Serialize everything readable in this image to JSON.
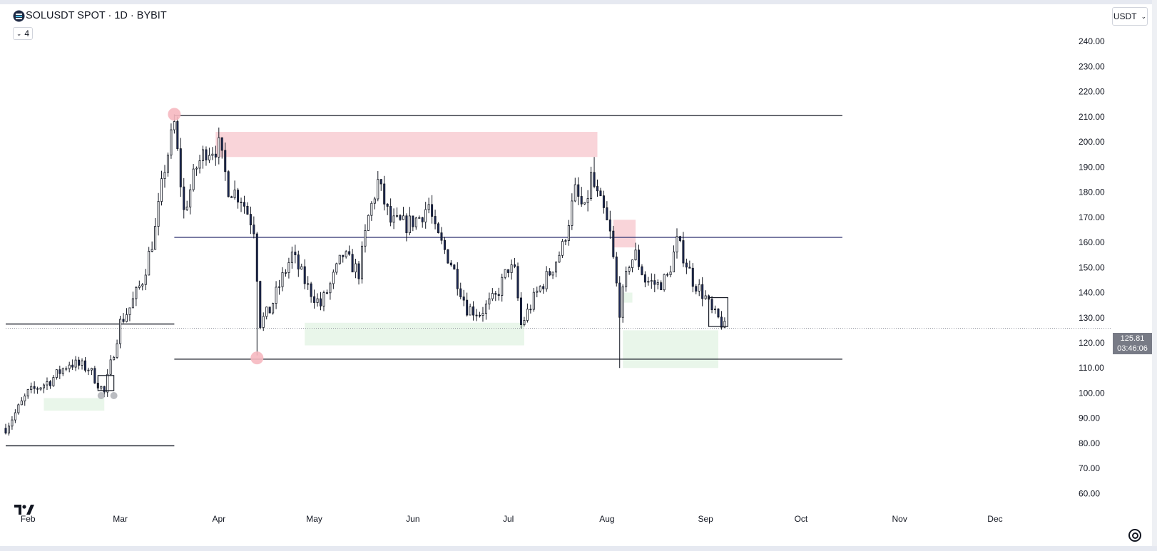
{
  "header": {
    "symbol_title": "SOLUSDT SPOT · 1D · BYBIT",
    "indicator_count": "4",
    "currency": "USDT"
  },
  "price_label": {
    "price": "125.81",
    "countdown": "03:46:06"
  },
  "colors": {
    "bull": "#ffffff",
    "bear": "#1e2b5a",
    "wick": "#131722",
    "supply_zone": "#f9d4d9",
    "demand_zone": "#e9f6ea",
    "level_line": "#131722",
    "mid_line": "#2a2e6e",
    "swing_marker": "#f6b8c0"
  },
  "chart_data": {
    "type": "candlestick",
    "title": "SOLUSDT SPOT · 1D · BYBIT",
    "xlabel": "",
    "ylabel": "",
    "ylim": [
      55,
      248
    ],
    "y_ticks": [
      60,
      70,
      80,
      90,
      100,
      110,
      120,
      130,
      140,
      150,
      160,
      170,
      180,
      190,
      200,
      210,
      220,
      230,
      240
    ],
    "x_start": "2024-01-25",
    "x_end": "2024-12-25",
    "x_ticks": [
      {
        "label": "Feb",
        "date": "2024-02-01"
      },
      {
        "label": "Mar",
        "date": "2024-03-01"
      },
      {
        "label": "Apr",
        "date": "2024-04-01"
      },
      {
        "label": "May",
        "date": "2024-05-01"
      },
      {
        "label": "Jun",
        "date": "2024-06-01"
      },
      {
        "label": "Jul",
        "date": "2024-07-01"
      },
      {
        "label": "Aug",
        "date": "2024-08-01"
      },
      {
        "label": "Sep",
        "date": "2024-09-01"
      },
      {
        "label": "Oct",
        "date": "2024-10-01"
      },
      {
        "label": "Nov",
        "date": "2024-11-01"
      },
      {
        "label": "Dec",
        "date": "2024-12-01"
      }
    ],
    "current_price": 125.81,
    "close_path": [
      [
        "2024-01-25",
        86
      ],
      [
        "2024-02-01",
        100
      ],
      [
        "2024-02-08",
        105
      ],
      [
        "2024-02-14",
        112
      ],
      [
        "2024-02-20",
        110
      ],
      [
        "2024-02-25",
        100
      ],
      [
        "2024-03-01",
        128
      ],
      [
        "2024-03-04",
        134
      ],
      [
        "2024-03-08",
        145
      ],
      [
        "2024-03-12",
        165
      ],
      [
        "2024-03-15",
        190
      ],
      [
        "2024-03-18",
        207
      ],
      [
        "2024-03-21",
        172
      ],
      [
        "2024-03-25",
        190
      ],
      [
        "2024-03-28",
        197
      ],
      [
        "2024-04-01",
        198
      ],
      [
        "2024-04-04",
        182
      ],
      [
        "2024-04-08",
        178
      ],
      [
        "2024-04-12",
        166
      ],
      [
        "2024-04-14",
        128
      ],
      [
        "2024-04-17",
        133
      ],
      [
        "2024-04-21",
        146
      ],
      [
        "2024-04-24",
        155
      ],
      [
        "2024-04-29",
        142
      ],
      [
        "2024-05-03",
        135
      ],
      [
        "2024-05-06",
        143
      ],
      [
        "2024-05-10",
        155
      ],
      [
        "2024-05-15",
        148
      ],
      [
        "2024-05-18",
        170
      ],
      [
        "2024-05-21",
        184
      ],
      [
        "2024-05-25",
        168
      ],
      [
        "2024-05-30",
        167
      ],
      [
        "2024-06-03",
        170
      ],
      [
        "2024-06-06",
        175
      ],
      [
        "2024-06-08",
        164
      ],
      [
        "2024-06-13",
        152
      ],
      [
        "2024-06-18",
        134
      ],
      [
        "2024-06-22",
        132
      ],
      [
        "2024-06-27",
        138
      ],
      [
        "2024-07-01",
        150
      ],
      [
        "2024-07-03",
        148
      ],
      [
        "2024-07-05",
        127
      ],
      [
        "2024-07-10",
        140
      ],
      [
        "2024-07-14",
        148
      ],
      [
        "2024-07-18",
        158
      ],
      [
        "2024-07-22",
        180
      ],
      [
        "2024-07-25",
        172
      ],
      [
        "2024-07-27",
        186
      ],
      [
        "2024-07-29",
        178
      ],
      [
        "2024-07-31",
        172
      ],
      [
        "2024-08-02",
        163
      ],
      [
        "2024-08-05",
        133
      ],
      [
        "2024-08-08",
        152
      ],
      [
        "2024-08-10",
        155
      ],
      [
        "2024-08-13",
        145
      ],
      [
        "2024-08-17",
        143
      ],
      [
        "2024-08-20",
        146
      ],
      [
        "2024-08-23",
        160
      ],
      [
        "2024-08-25",
        155
      ],
      [
        "2024-08-28",
        145
      ],
      [
        "2024-09-01",
        138
      ],
      [
        "2024-09-03",
        132
      ],
      [
        "2024-09-06",
        128
      ],
      [
        "2024-09-07",
        125.81
      ]
    ],
    "wick_extremes": [
      {
        "date": "2024-03-18",
        "high": 211
      },
      {
        "date": "2024-04-13",
        "low": 115
      },
      {
        "date": "2024-07-28",
        "high": 194
      },
      {
        "date": "2024-08-05",
        "low": 110
      }
    ],
    "horizontal_levels": [
      {
        "price": 210.5,
        "from": "2024-03-18",
        "to": "2024-10-14",
        "role": "range-high"
      },
      {
        "price": 113.5,
        "from": "2024-03-18",
        "to": "2024-10-14",
        "role": "range-low"
      },
      {
        "price": 162,
        "from": "2024-03-18",
        "to": "2024-10-14",
        "role": "mid"
      },
      {
        "price": 127.5,
        "from": "2024-01-25",
        "to": "2024-03-18",
        "role": "level"
      },
      {
        "price": 79,
        "from": "2024-01-25",
        "to": "2024-03-18",
        "role": "level"
      }
    ],
    "zones": [
      {
        "type": "supply",
        "from": "2024-03-31",
        "to": "2024-07-29",
        "top": 204,
        "bottom": 194
      },
      {
        "type": "supply",
        "from": "2024-08-03",
        "to": "2024-08-10",
        "top": 169,
        "bottom": 158
      },
      {
        "type": "demand",
        "from": "2024-02-06",
        "to": "2024-02-25",
        "top": 98,
        "bottom": 93
      },
      {
        "type": "demand",
        "from": "2024-04-28",
        "to": "2024-07-06",
        "top": 128,
        "bottom": 119
      },
      {
        "type": "demand",
        "from": "2024-08-06",
        "to": "2024-08-09",
        "top": 140,
        "bottom": 136
      },
      {
        "type": "demand",
        "from": "2024-08-06",
        "to": "2024-09-05",
        "top": 125,
        "bottom": 110
      }
    ],
    "swing_markers": [
      {
        "date": "2024-03-18",
        "price": 211,
        "color": "pink"
      },
      {
        "date": "2024-04-13",
        "price": 114,
        "color": "pink"
      },
      {
        "date": "2024-02-24",
        "price": 99,
        "color": "gray"
      },
      {
        "date": "2024-02-28",
        "price": 99,
        "color": "gray"
      }
    ],
    "boxes": [
      {
        "from": "2024-02-23",
        "to": "2024-02-28",
        "top": 107,
        "bottom": 101
      },
      {
        "from": "2024-09-02",
        "to": "2024-09-08",
        "top": 138,
        "bottom": 126.5
      }
    ]
  }
}
